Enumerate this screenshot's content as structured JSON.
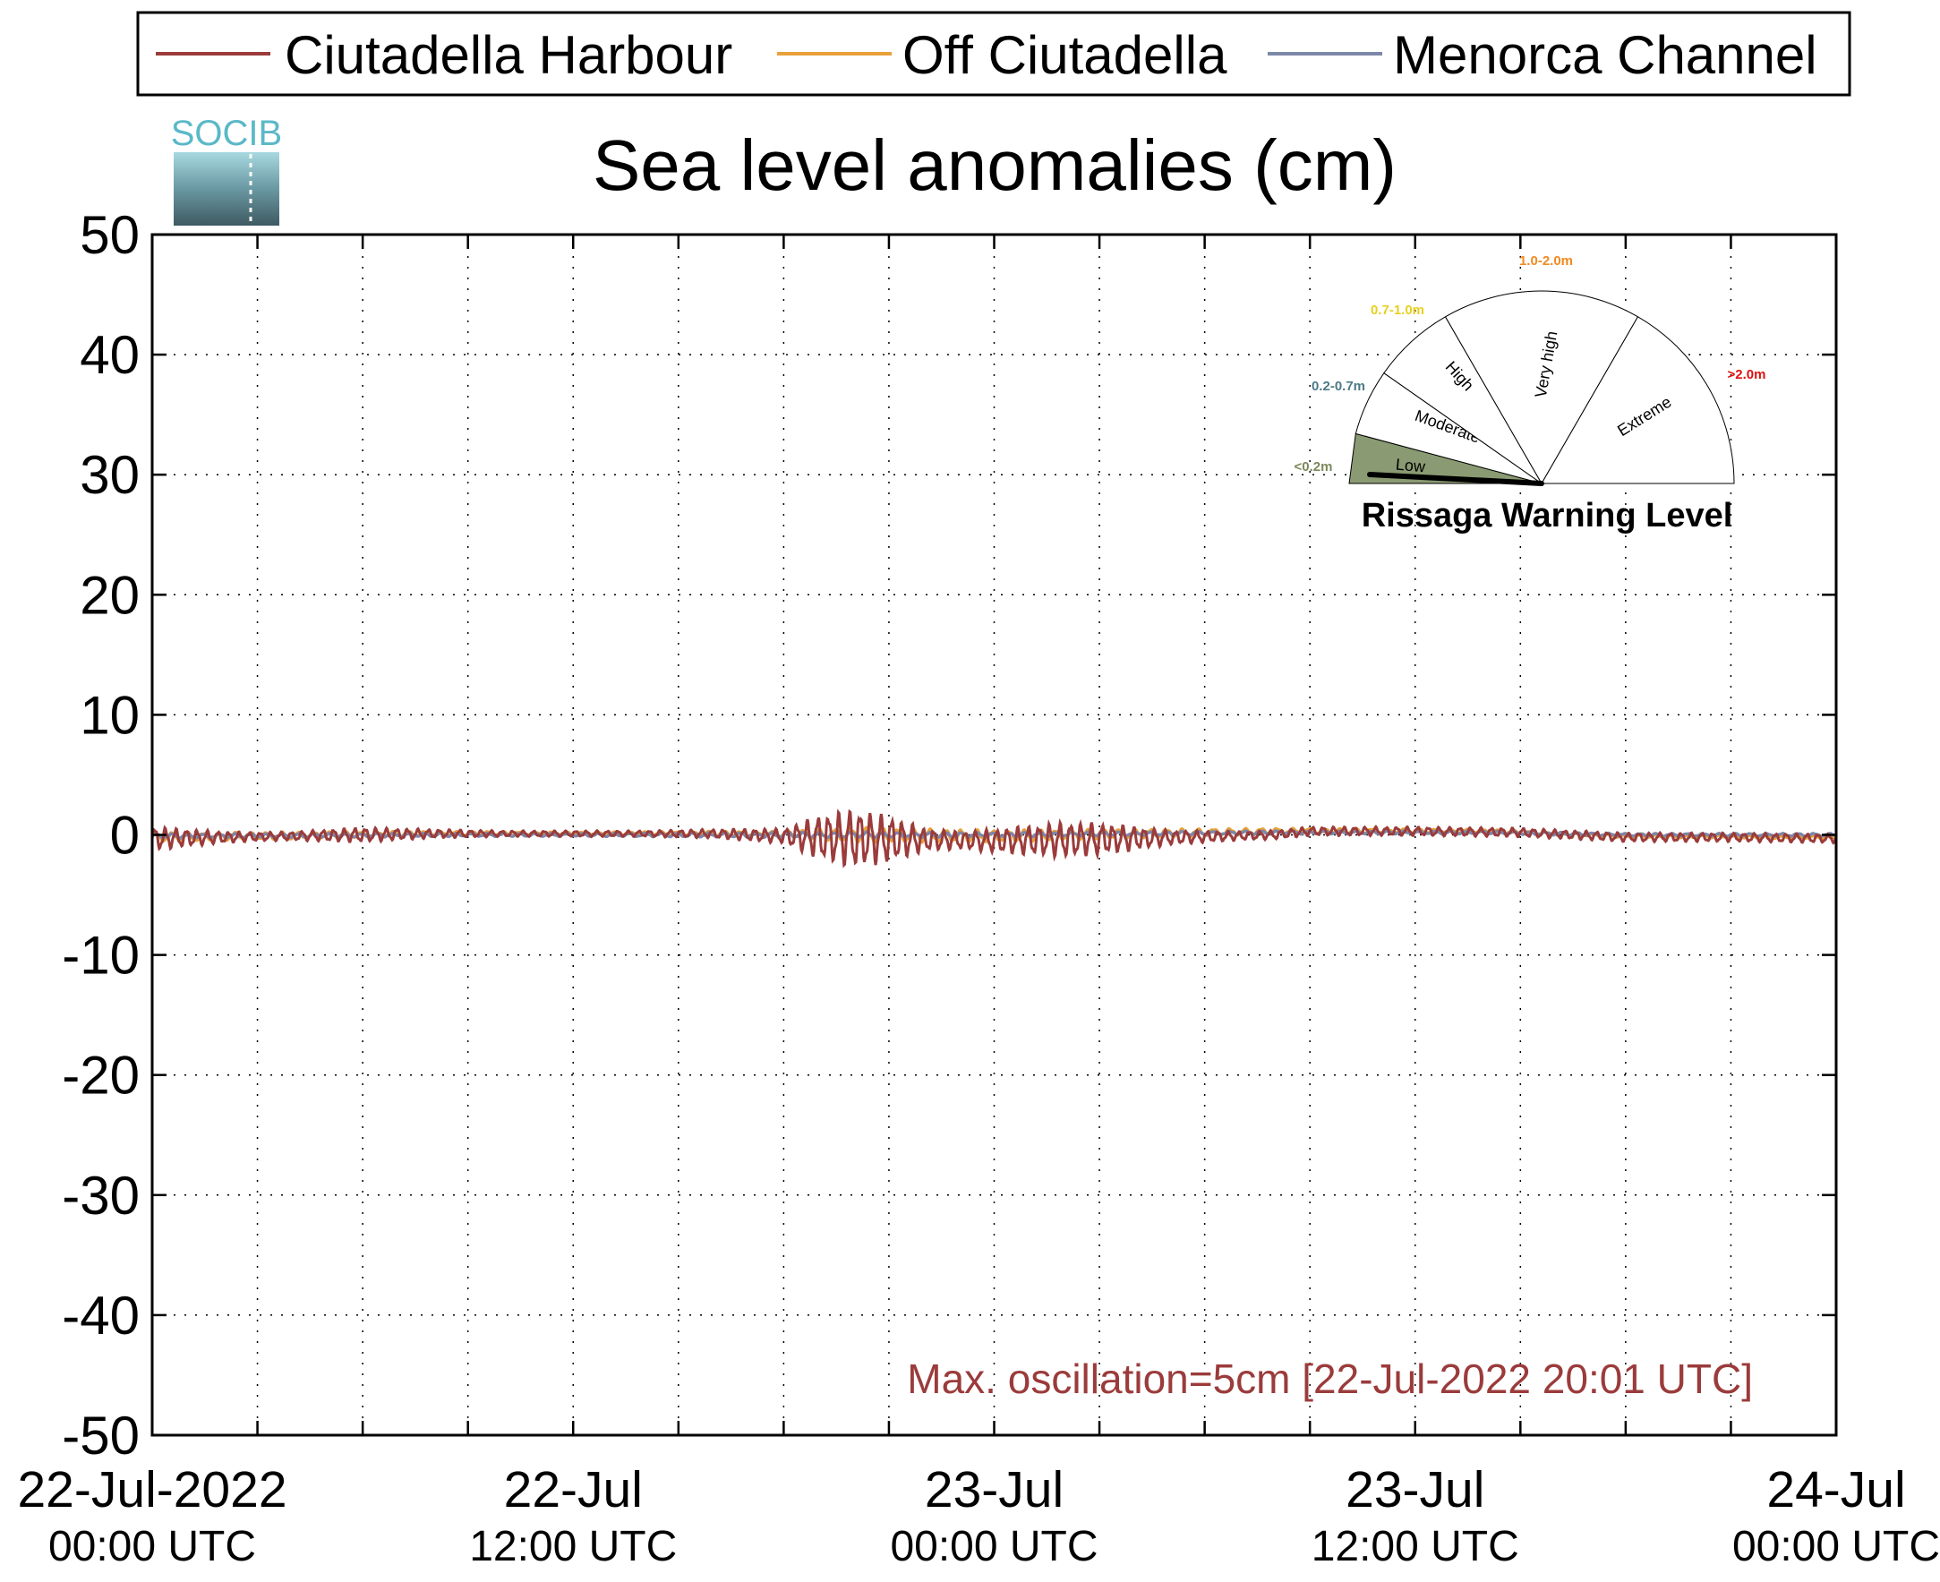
{
  "title": "Sea level anomalies (cm)",
  "logo_text": "SOCIB",
  "legend": [
    {
      "name": "Ciutadella Harbour",
      "color": "#9b3b3b"
    },
    {
      "name": "Off Ciutadella",
      "color": "#e8a13a"
    },
    {
      "name": "Menorca Channel",
      "color": "#7d87a8"
    }
  ],
  "annotation": "Max. oscillation=5cm [22-Jul-2022 20:01 UTC]",
  "gauge": {
    "title": "Rissaga Warning Level",
    "current_level": "Low",
    "segments": [
      {
        "label": "Low",
        "range": "<0.2m",
        "range_color": "#7a8a5a",
        "fill": "#8a9a72"
      },
      {
        "label": "Moderate",
        "range": "0.2-0.7m",
        "range_color": "#4d7a86",
        "fill": "#ffffff"
      },
      {
        "label": "High",
        "range": "0.7-1.0m",
        "range_color": "#e8d020",
        "fill": "#ffffff"
      },
      {
        "label": "Very high",
        "range": "1.0-2.0m",
        "range_color": "#f08a20",
        "fill": "#ffffff"
      },
      {
        "label": "Extreme",
        "range": ">2.0m",
        "range_color": "#e01010",
        "fill": "#ffffff"
      }
    ]
  },
  "chart_data": {
    "type": "line",
    "title": "Sea level anomalies (cm)",
    "ylim": [
      -50,
      50
    ],
    "yticks": [
      50,
      40,
      30,
      20,
      10,
      0,
      -10,
      -20,
      -30,
      -40,
      -50
    ],
    "xlim_hours": [
      0,
      48
    ],
    "grid": true,
    "legend_position": "top",
    "xticks": [
      {
        "hours": 0,
        "line1": "22-Jul-2022",
        "line2": "00:00 UTC"
      },
      {
        "hours": 12,
        "line1": "22-Jul",
        "line2": "12:00 UTC"
      },
      {
        "hours": 24,
        "line1": "23-Jul",
        "line2": "00:00 UTC"
      },
      {
        "hours": 36,
        "line1": "23-Jul",
        "line2": "12:00 UTC"
      },
      {
        "hours": 48,
        "line1": "24-Jul",
        "line2": "00:00 UTC"
      }
    ],
    "minor_x_hours": [
      3,
      6,
      9,
      15,
      18,
      21,
      27,
      30,
      33,
      39,
      42,
      45
    ],
    "series": [
      {
        "name": "Ciutadella Harbour",
        "color": "#9b3b3b",
        "envelope": [
          [
            0,
            0.8
          ],
          [
            1,
            0.6
          ],
          [
            2,
            0.4
          ],
          [
            3,
            0.3
          ],
          [
            4,
            0.3
          ],
          [
            6,
            0.5
          ],
          [
            7,
            0.4
          ],
          [
            8,
            0.3
          ],
          [
            10,
            0.2
          ],
          [
            12,
            0.2
          ],
          [
            14,
            0.2
          ],
          [
            16,
            0.3
          ],
          [
            18,
            0.5
          ],
          [
            19,
            1.5
          ],
          [
            20,
            2.0
          ],
          [
            21,
            1.6
          ],
          [
            22,
            0.8
          ],
          [
            23,
            0.6
          ],
          [
            24,
            0.8
          ],
          [
            25,
            1.0
          ],
          [
            26,
            1.2
          ],
          [
            27,
            1.1
          ],
          [
            28,
            0.8
          ],
          [
            29,
            0.5
          ],
          [
            30,
            0.4
          ],
          [
            31,
            0.3
          ],
          [
            33,
            0.3
          ],
          [
            36,
            0.3
          ],
          [
            39,
            0.3
          ],
          [
            42,
            0.3
          ],
          [
            45,
            0.3
          ],
          [
            48,
            0.3
          ]
        ],
        "baseline": [
          [
            0,
            -0.3
          ],
          [
            4,
            -0.1
          ],
          [
            8,
            0.1
          ],
          [
            12,
            0.1
          ],
          [
            16,
            0.1
          ],
          [
            20,
            -0.3
          ],
          [
            24,
            -0.5
          ],
          [
            28,
            -0.3
          ],
          [
            32,
            0.0
          ],
          [
            33,
            0.3
          ],
          [
            36,
            0.3
          ],
          [
            39,
            0.2
          ],
          [
            42,
            -0.2
          ],
          [
            45,
            -0.2
          ],
          [
            48,
            -0.3
          ]
        ]
      },
      {
        "name": "Off Ciutadella",
        "color": "#e8a13a",
        "envelope": [
          [
            0,
            0.3
          ],
          [
            6,
            0.2
          ],
          [
            12,
            0.1
          ],
          [
            18,
            0.2
          ],
          [
            20,
            0.5
          ],
          [
            24,
            0.4
          ],
          [
            28,
            0.3
          ],
          [
            32,
            0.2
          ],
          [
            40,
            0.1
          ],
          [
            48,
            0.1
          ]
        ],
        "baseline": [
          [
            0,
            -0.2
          ],
          [
            8,
            0.1
          ],
          [
            16,
            0.1
          ],
          [
            24,
            -0.1
          ],
          [
            32,
            0.3
          ],
          [
            38,
            0.3
          ],
          [
            42,
            -0.1
          ],
          [
            48,
            -0.2
          ]
        ]
      },
      {
        "name": "Menorca Channel",
        "color": "#7d87a8",
        "envelope": [
          [
            0,
            0.15
          ],
          [
            12,
            0.1
          ],
          [
            20,
            0.2
          ],
          [
            24,
            0.15
          ],
          [
            36,
            0.1
          ],
          [
            48,
            0.1
          ]
        ],
        "baseline": [
          [
            0,
            -0.1
          ],
          [
            8,
            0.0
          ],
          [
            16,
            0.0
          ],
          [
            24,
            0.0
          ],
          [
            32,
            0.2
          ],
          [
            38,
            0.2
          ],
          [
            42,
            0.0
          ],
          [
            48,
            0.0
          ]
        ]
      }
    ]
  }
}
